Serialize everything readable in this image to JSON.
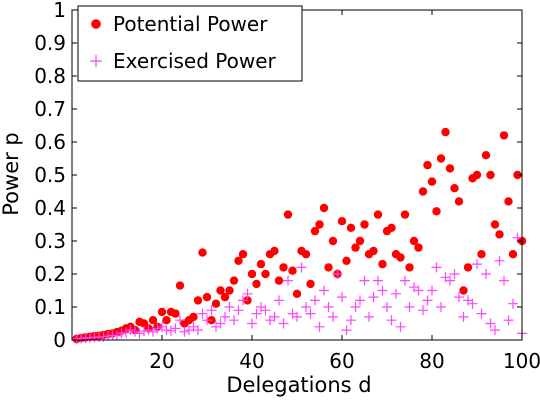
{
  "chart_data": {
    "type": "scatter",
    "title": "",
    "xlabel": "Delegations d",
    "ylabel": "Power p",
    "xlim": [
      0,
      100
    ],
    "ylim": [
      0,
      1
    ],
    "xticks": [
      20,
      40,
      60,
      80,
      100
    ],
    "yticks": [
      0,
      0.1,
      0.2,
      0.3,
      0.4,
      0.5,
      0.6,
      0.7,
      0.8,
      0.9,
      1
    ],
    "ytick_labels": [
      "0",
      "0.1",
      "0.2",
      "0.3",
      "0.4",
      "0.5",
      "0.6",
      "0.7",
      "0.8",
      "0.9",
      "1"
    ],
    "grid": false,
    "legend_position": "top-left",
    "series": [
      {
        "name": "Potential Power",
        "marker": "dot",
        "color": "#ff0000",
        "points": [
          [
            1,
            0.003
          ],
          [
            2,
            0.006
          ],
          [
            3,
            0.008
          ],
          [
            4,
            0.01
          ],
          [
            5,
            0.012
          ],
          [
            6,
            0.013
          ],
          [
            7,
            0.015
          ],
          [
            8,
            0.018
          ],
          [
            9,
            0.02
          ],
          [
            10,
            0.024
          ],
          [
            11,
            0.028
          ],
          [
            12,
            0.035
          ],
          [
            13,
            0.04
          ],
          [
            14,
            0.03
          ],
          [
            15,
            0.055
          ],
          [
            16,
            0.05
          ],
          [
            17,
            0.035
          ],
          [
            18,
            0.06
          ],
          [
            19,
            0.04
          ],
          [
            20,
            0.085
          ],
          [
            21,
            0.06
          ],
          [
            22,
            0.085
          ],
          [
            23,
            0.08
          ],
          [
            24,
            0.165
          ],
          [
            25,
            0.05
          ],
          [
            26,
            0.06
          ],
          [
            27,
            0.07
          ],
          [
            28,
            0.12
          ],
          [
            29,
            0.265
          ],
          [
            30,
            0.13
          ],
          [
            31,
            0.06
          ],
          [
            32,
            0.11
          ],
          [
            33,
            0.15
          ],
          [
            34,
            0.13
          ],
          [
            35,
            0.15
          ],
          [
            36,
            0.18
          ],
          [
            37,
            0.24
          ],
          [
            38,
            0.26
          ],
          [
            39,
            0.12
          ],
          [
            40,
            0.2
          ],
          [
            41,
            0.17
          ],
          [
            42,
            0.23
          ],
          [
            43,
            0.2
          ],
          [
            44,
            0.26
          ],
          [
            45,
            0.27
          ],
          [
            46,
            0.18
          ],
          [
            47,
            0.22
          ],
          [
            48,
            0.38
          ],
          [
            49,
            0.21
          ],
          [
            50,
            0.14
          ],
          [
            51,
            0.27
          ],
          [
            52,
            0.26
          ],
          [
            53,
            0.17
          ],
          [
            54,
            0.33
          ],
          [
            55,
            0.35
          ],
          [
            56,
            0.4
          ],
          [
            57,
            0.22
          ],
          [
            58,
            0.3
          ],
          [
            59,
            0.2
          ],
          [
            60,
            0.36
          ],
          [
            61,
            0.24
          ],
          [
            62,
            0.34
          ],
          [
            63,
            0.28
          ],
          [
            64,
            0.3
          ],
          [
            65,
            0.35
          ],
          [
            66,
            0.26
          ],
          [
            67,
            0.27
          ],
          [
            68,
            0.38
          ],
          [
            69,
            0.23
          ],
          [
            70,
            0.33
          ],
          [
            71,
            0.34
          ],
          [
            72,
            0.26
          ],
          [
            73,
            0.25
          ],
          [
            74,
            0.38
          ],
          [
            75,
            0.22
          ],
          [
            76,
            0.3
          ],
          [
            77,
            0.28
          ],
          [
            78,
            0.45
          ],
          [
            79,
            0.53
          ],
          [
            80,
            0.48
          ],
          [
            81,
            0.39
          ],
          [
            82,
            0.55
          ],
          [
            83,
            0.63
          ],
          [
            84,
            0.52
          ],
          [
            85,
            0.46
          ],
          [
            86,
            0.42
          ],
          [
            87,
            0.15
          ],
          [
            88,
            0.22
          ],
          [
            89,
            0.49
          ],
          [
            90,
            0.5
          ],
          [
            91,
            0.26
          ],
          [
            92,
            0.56
          ],
          [
            93,
            0.5
          ],
          [
            94,
            0.35
          ],
          [
            95,
            0.32
          ],
          [
            96,
            0.62
          ],
          [
            97,
            0.42
          ],
          [
            98,
            0.26
          ],
          [
            99,
            0.5
          ],
          [
            100,
            0.3
          ]
        ]
      },
      {
        "name": "Exercised Power",
        "marker": "plus",
        "color": "#ff44ff",
        "points": [
          [
            1,
            0.003
          ],
          [
            2,
            0.005
          ],
          [
            3,
            0.006
          ],
          [
            4,
            0.007
          ],
          [
            5,
            0.008
          ],
          [
            6,
            0.009
          ],
          [
            7,
            0.01
          ],
          [
            8,
            0.012
          ],
          [
            9,
            0.014
          ],
          [
            10,
            0.013
          ],
          [
            11,
            0.02
          ],
          [
            12,
            0.022
          ],
          [
            13,
            0.03
          ],
          [
            14,
            0.025
          ],
          [
            15,
            0.02
          ],
          [
            16,
            0.027
          ],
          [
            17,
            0.03
          ],
          [
            18,
            0.025
          ],
          [
            19,
            0.035
          ],
          [
            20,
            0.04
          ],
          [
            21,
            0.03
          ],
          [
            22,
            0.028
          ],
          [
            23,
            0.035
          ],
          [
            24,
            0.06
          ],
          [
            25,
            0.025
          ],
          [
            26,
            0.03
          ],
          [
            27,
            0.04
          ],
          [
            28,
            0.03
          ],
          [
            29,
            0.08
          ],
          [
            30,
            0.06
          ],
          [
            31,
            0.09
          ],
          [
            32,
            0.04
          ],
          [
            33,
            0.05
          ],
          [
            34,
            0.07
          ],
          [
            35,
            0.1
          ],
          [
            36,
            0.06
          ],
          [
            37,
            0.09
          ],
          [
            38,
            0.12
          ],
          [
            39,
            0.14
          ],
          [
            40,
            0.05
          ],
          [
            41,
            0.08
          ],
          [
            42,
            0.1
          ],
          [
            43,
            0.09
          ],
          [
            44,
            0.06
          ],
          [
            45,
            0.07
          ],
          [
            46,
            0.12
          ],
          [
            47,
            0.05
          ],
          [
            48,
            0.18
          ],
          [
            49,
            0.08
          ],
          [
            50,
            0.07
          ],
          [
            51,
            0.22
          ],
          [
            52,
            0.1
          ],
          [
            53,
            0.08
          ],
          [
            54,
            0.12
          ],
          [
            55,
            0.04
          ],
          [
            56,
            0.15
          ],
          [
            57,
            0.1
          ],
          [
            58,
            0.07
          ],
          [
            59,
            0.2
          ],
          [
            60,
            0.13
          ],
          [
            61,
            0.03
          ],
          [
            62,
            0.06
          ],
          [
            63,
            0.1
          ],
          [
            64,
            0.12
          ],
          [
            65,
            0.18
          ],
          [
            66,
            0.07
          ],
          [
            67,
            0.13
          ],
          [
            68,
            0.18
          ],
          [
            69,
            0.15
          ],
          [
            70,
            0.1
          ],
          [
            71,
            0.06
          ],
          [
            72,
            0.14
          ],
          [
            73,
            0.04
          ],
          [
            74,
            0.18
          ],
          [
            75,
            0.1
          ],
          [
            76,
            0.16
          ],
          [
            77,
            0.15
          ],
          [
            78,
            0.09
          ],
          [
            79,
            0.12
          ],
          [
            80,
            0.15
          ],
          [
            81,
            0.22
          ],
          [
            82,
            0.1
          ],
          [
            83,
            0.19
          ],
          [
            84,
            0.18
          ],
          [
            85,
            0.2
          ],
          [
            86,
            0.13
          ],
          [
            87,
            0.07
          ],
          [
            88,
            0.12
          ],
          [
            89,
            0.11
          ],
          [
            90,
            0.23
          ],
          [
            91,
            0.08
          ],
          [
            92,
            0.2
          ],
          [
            93,
            0.05
          ],
          [
            94,
            0.03
          ],
          [
            95,
            0.24
          ],
          [
            96,
            0.18
          ],
          [
            97,
            0.06
          ],
          [
            98,
            0.11
          ],
          [
            99,
            0.31
          ],
          [
            100,
            0.02
          ]
        ]
      }
    ]
  }
}
